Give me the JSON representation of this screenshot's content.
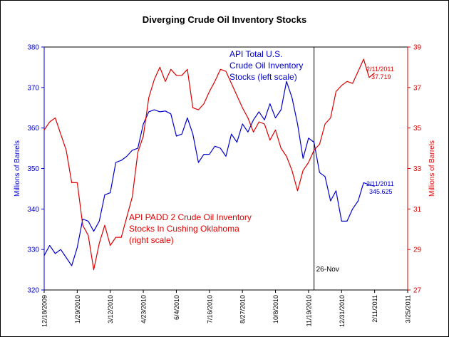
{
  "chart_data": {
    "type": "line",
    "title": "Diverging Crude Oil Inventory Stocks",
    "y_left_label": "Millions of Barrels",
    "y_right_label": "Millions of Barrels",
    "y_left_ticks": [
      "320",
      "330",
      "340",
      "350",
      "360",
      "370",
      "380"
    ],
    "y_right_ticks": [
      "27",
      "29",
      "31",
      "33",
      "35",
      "37",
      "39"
    ],
    "y_left_range": [
      320,
      380
    ],
    "y_right_range": [
      27,
      39
    ],
    "x_range": [
      "2009-12-18",
      "2011-03-25"
    ],
    "x_ticks": [
      "12/18/2009",
      "1/29/2010",
      "3/12/2010",
      "4/23/2010",
      "6/4/2010",
      "7/16/2010",
      "8/27/2010",
      "10/8/2010",
      "11/19/2010",
      "12/31/2010",
      "2/11/2011",
      "3/25/2011"
    ],
    "colors": {
      "left_series": "#0000cc",
      "right_series": "#dd0000",
      "vline": "#000000"
    },
    "series": [
      {
        "name": "API Total U.S. Crude Oil Inventory Stocks (left scale)",
        "label_lines": [
          "API Total U.S.",
          "Crude Oil Inventory",
          "Stocks (left scale)"
        ],
        "axis": "left",
        "end_label": {
          "date": "2/11/2011",
          "value": "345.625"
        },
        "points": [
          [
            "2009-12-18",
            328.5
          ],
          [
            "2009-12-25",
            331
          ],
          [
            "2010-01-01",
            329
          ],
          [
            "2010-01-08",
            330
          ],
          [
            "2010-01-15",
            328
          ],
          [
            "2010-01-22",
            326
          ],
          [
            "2010-01-29",
            330.5
          ],
          [
            "2010-02-05",
            337.5
          ],
          [
            "2010-02-12",
            337
          ],
          [
            "2010-02-19",
            334.5
          ],
          [
            "2010-02-26",
            337
          ],
          [
            "2010-03-05",
            343.5
          ],
          [
            "2010-03-12",
            344
          ],
          [
            "2010-03-19",
            351.5
          ],
          [
            "2010-03-26",
            352
          ],
          [
            "2010-04-02",
            353
          ],
          [
            "2010-04-09",
            354.5
          ],
          [
            "2010-04-16",
            355
          ],
          [
            "2010-04-23",
            361
          ],
          [
            "2010-04-30",
            364
          ],
          [
            "2010-05-07",
            364.5
          ],
          [
            "2010-05-14",
            364
          ],
          [
            "2010-05-21",
            364.2
          ],
          [
            "2010-05-28",
            363.5
          ],
          [
            "2010-06-04",
            358
          ],
          [
            "2010-06-11",
            358.5
          ],
          [
            "2010-06-18",
            362.5
          ],
          [
            "2010-06-25",
            358.5
          ],
          [
            "2010-07-02",
            351.5
          ],
          [
            "2010-07-09",
            353.5
          ],
          [
            "2010-07-16",
            353.5
          ],
          [
            "2010-07-23",
            355.5
          ],
          [
            "2010-07-30",
            355
          ],
          [
            "2010-08-06",
            353
          ],
          [
            "2010-08-13",
            358.5
          ],
          [
            "2010-08-20",
            356.5
          ],
          [
            "2010-08-27",
            361
          ],
          [
            "2010-09-03",
            359
          ],
          [
            "2010-09-10",
            362
          ],
          [
            "2010-09-17",
            364
          ],
          [
            "2010-09-24",
            362
          ],
          [
            "2010-10-01",
            366
          ],
          [
            "2010-10-08",
            362.5
          ],
          [
            "2010-10-15",
            364.5
          ],
          [
            "2010-10-22",
            371.5
          ],
          [
            "2010-10-29",
            367.5
          ],
          [
            "2010-11-05",
            361
          ],
          [
            "2010-11-12",
            352.5
          ],
          [
            "2010-11-19",
            357.5
          ],
          [
            "2010-11-26",
            356.5
          ],
          [
            "2010-12-03",
            349
          ],
          [
            "2010-12-10",
            348
          ],
          [
            "2010-12-17",
            342
          ],
          [
            "2010-12-24",
            344.5
          ],
          [
            "2010-12-31",
            337
          ],
          [
            "2011-01-07",
            337
          ],
          [
            "2011-01-14",
            340
          ],
          [
            "2011-01-21",
            342
          ],
          [
            "2011-01-28",
            346.5
          ],
          [
            "2011-02-04",
            346
          ],
          [
            "2011-02-11",
            345.625
          ]
        ]
      },
      {
        "name": "API PADD 2 Crude Oil Inventory Stocks In Cushing Oklahoma (right scale)",
        "label_lines": [
          "API PADD 2 Crude Oil Inventory",
          "Stocks In Cushing Oklahoma",
          "(right scale)"
        ],
        "axis": "right",
        "end_label": {
          "date": "2/11/2011",
          "value": "37.719"
        },
        "points": [
          [
            "2009-12-18",
            34.9
          ],
          [
            "2009-12-25",
            35.3
          ],
          [
            "2010-01-01",
            35.5
          ],
          [
            "2010-01-08",
            34.7
          ],
          [
            "2010-01-15",
            33.9
          ],
          [
            "2010-01-22",
            32.3
          ],
          [
            "2010-01-29",
            32.3
          ],
          [
            "2010-02-05",
            30.2
          ],
          [
            "2010-02-12",
            29.7
          ],
          [
            "2010-02-19",
            28.0
          ],
          [
            "2010-02-26",
            29.3
          ],
          [
            "2010-03-05",
            30.2
          ],
          [
            "2010-03-12",
            29.2
          ],
          [
            "2010-03-19",
            29.6
          ],
          [
            "2010-03-26",
            29.6
          ],
          [
            "2010-04-02",
            30.6
          ],
          [
            "2010-04-09",
            31.6
          ],
          [
            "2010-04-16",
            33.8
          ],
          [
            "2010-04-23",
            34.6
          ],
          [
            "2010-04-30",
            36.5
          ],
          [
            "2010-05-07",
            37.4
          ],
          [
            "2010-05-14",
            38.0
          ],
          [
            "2010-05-21",
            37.3
          ],
          [
            "2010-05-28",
            37.9
          ],
          [
            "2010-06-04",
            37.6
          ],
          [
            "2010-06-11",
            37.6
          ],
          [
            "2010-06-18",
            37.9
          ],
          [
            "2010-06-25",
            36.0
          ],
          [
            "2010-07-02",
            35.9
          ],
          [
            "2010-07-09",
            36.2
          ],
          [
            "2010-07-16",
            36.8
          ],
          [
            "2010-07-23",
            37.3
          ],
          [
            "2010-07-30",
            37.9
          ],
          [
            "2010-08-06",
            37.8
          ],
          [
            "2010-08-13",
            37.2
          ],
          [
            "2010-08-20",
            36.6
          ],
          [
            "2010-08-27",
            36.0
          ],
          [
            "2010-09-03",
            35.5
          ],
          [
            "2010-09-10",
            34.8
          ],
          [
            "2010-09-17",
            35.3
          ],
          [
            "2010-09-24",
            35.2
          ],
          [
            "2010-10-01",
            34.4
          ],
          [
            "2010-10-08",
            34.9
          ],
          [
            "2010-10-15",
            34.0
          ],
          [
            "2010-10-22",
            33.6
          ],
          [
            "2010-10-29",
            32.9
          ],
          [
            "2010-11-05",
            31.9
          ],
          [
            "2010-11-12",
            32.9
          ],
          [
            "2010-11-19",
            33.3
          ],
          [
            "2010-11-26",
            33.9
          ],
          [
            "2010-12-03",
            34.2
          ],
          [
            "2010-12-10",
            35.2
          ],
          [
            "2010-12-17",
            35.5
          ],
          [
            "2010-12-24",
            36.8
          ],
          [
            "2010-12-31",
            37.1
          ],
          [
            "2011-01-07",
            37.3
          ],
          [
            "2011-01-14",
            37.2
          ],
          [
            "2011-01-21",
            37.8
          ],
          [
            "2011-01-28",
            38.4
          ],
          [
            "2011-02-04",
            37.5
          ],
          [
            "2011-02-11",
            37.719
          ]
        ]
      }
    ],
    "annotations": [
      {
        "type": "vline",
        "date": "2010-11-26",
        "label": "26-Nov"
      }
    ],
    "grid": false
  }
}
